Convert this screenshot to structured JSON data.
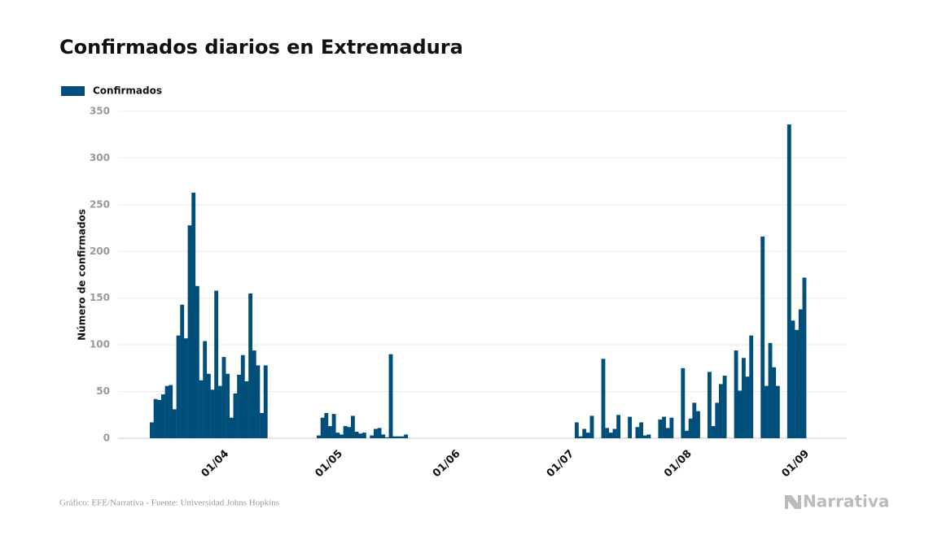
{
  "chart_data": {
    "type": "bar",
    "title": "Confirmados diarios en Extremadura",
    "ylabel": "Número de confirmados",
    "source": "Gráfico: EFE/Narrativa - Fuente: Universidad Johns Hopkins",
    "logo": "Narrativa",
    "legend": "top-left",
    "grid": true,
    "ylim": [
      0,
      350
    ],
    "yticks": [
      0,
      50,
      100,
      150,
      200,
      250,
      300,
      350
    ],
    "categories": [
      null,
      null,
      null,
      null,
      null,
      null,
      null,
      null,
      null,
      null,
      null,
      null,
      null,
      null,
      null,
      null,
      "01/04",
      null,
      null,
      null,
      null,
      null,
      null,
      null,
      null,
      null,
      null,
      null,
      null,
      null,
      null,
      null,
      null,
      null,
      null,
      null,
      null,
      null,
      null,
      null,
      null,
      null,
      null,
      null,
      null,
      null,
      "01/05",
      null,
      null,
      null,
      null,
      null,
      null,
      null,
      null,
      null,
      null,
      null,
      null,
      null,
      null,
      null,
      null,
      null,
      null,
      null,
      null,
      null,
      null,
      null,
      null,
      null,
      null,
      null,
      null,
      null,
      null,
      "01/06",
      null,
      null,
      null,
      null,
      null,
      null,
      null,
      null,
      null,
      null,
      null,
      null,
      null,
      null,
      null,
      null,
      null,
      null,
      null,
      null,
      null,
      null,
      null,
      null,
      null,
      null,
      null,
      null,
      null,
      "01/07",
      null,
      null,
      null,
      null,
      null,
      null,
      null,
      null,
      null,
      null,
      null,
      null,
      null,
      null,
      null,
      null,
      null,
      null,
      null,
      null,
      null,
      null,
      null,
      null,
      null,
      null,
      null,
      null,
      null,
      null,
      "01/08",
      null,
      null,
      null,
      null,
      null,
      null,
      null,
      null,
      null,
      null,
      null,
      null,
      null,
      null,
      null,
      null,
      null,
      null,
      null,
      null,
      null,
      null,
      null,
      null,
      null,
      null,
      null,
      null,
      null,
      null,
      "01/09",
      null,
      null,
      null
    ],
    "series": [
      {
        "name": "Confirmados",
        "color": "#004f7a",
        "values": [
          17,
          42,
          41,
          47,
          56,
          57,
          31,
          110,
          143,
          107,
          228,
          263,
          163,
          62,
          104,
          69,
          52,
          158,
          56,
          87,
          69,
          22,
          48,
          68,
          89,
          61,
          155,
          94,
          78,
          27,
          78,
          0,
          0,
          0,
          0,
          0,
          0,
          0,
          0,
          0,
          0,
          0,
          0,
          0,
          3,
          22,
          27,
          13,
          26,
          6,
          4,
          13,
          12,
          24,
          7,
          5,
          6,
          0,
          3,
          10,
          11,
          4,
          1,
          90,
          2,
          2,
          2,
          4,
          0,
          0,
          0,
          0,
          0,
          0,
          0,
          0,
          0,
          0,
          0,
          0,
          0,
          0,
          0,
          0,
          0,
          0,
          0,
          0,
          0,
          0,
          0,
          0,
          0,
          0,
          0,
          0,
          0,
          0,
          0,
          0,
          0,
          0,
          0,
          0,
          0,
          0,
          0,
          0,
          0,
          0,
          0,
          0,
          17,
          2,
          10,
          6,
          24,
          0,
          0,
          85,
          11,
          6,
          10,
          25,
          0,
          0,
          23,
          0,
          12,
          17,
          3,
          4,
          0,
          0,
          20,
          23,
          11,
          22,
          0,
          0,
          75,
          8,
          21,
          38,
          29,
          0,
          0,
          71,
          13,
          38,
          58,
          67,
          0,
          0,
          94,
          51,
          86,
          66,
          110,
          0,
          0,
          216,
          56,
          102,
          76,
          56,
          0,
          0,
          336,
          126,
          116,
          138,
          172
        ]
      }
    ]
  }
}
